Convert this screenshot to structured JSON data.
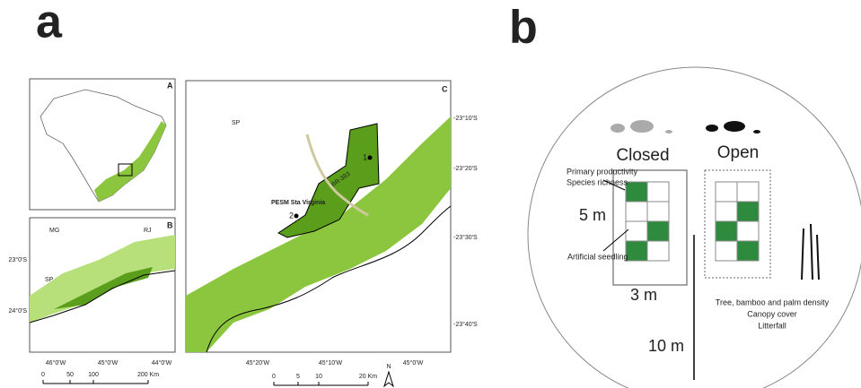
{
  "panel_a": {
    "label": "a",
    "map_a": {
      "label": "A"
    },
    "map_b": {
      "label": "B",
      "places": [
        "MG",
        "RJ",
        "SP"
      ],
      "lat_labels": [
        "23°0'S",
        "24°0'S"
      ],
      "lon_labels": [
        "46°0'W",
        "45°0'W",
        "44°0'W"
      ],
      "scale_labels": [
        "0",
        "50",
        "100",
        "200 Km"
      ]
    },
    "map_c": {
      "label": "C",
      "places": [
        "SP"
      ],
      "road": "BR-383",
      "sites": [
        "1",
        "2"
      ],
      "park": "PESM Sta Virginia",
      "lat_labels": [
        "-23°10'S",
        "-23°20'S",
        "-23°30'S",
        "-23°40'S"
      ],
      "lon_labels": [
        "45°20'W",
        "45°10'W",
        "45°0'W"
      ],
      "scale_labels": [
        "0",
        "5",
        "10",
        "20 Km"
      ],
      "north": "N"
    }
  },
  "panel_b": {
    "label": "b",
    "closed": "Closed",
    "open": "Open",
    "measures_left": [
      "Primary productivity",
      "Species richness"
    ],
    "height": "5 m",
    "seedling": "Artificial seedling",
    "width": "3 m",
    "distance": "10 m",
    "measures_right": [
      "Tree, bamboo and palm density",
      "Canopy cover",
      "Litterfall"
    ]
  }
}
